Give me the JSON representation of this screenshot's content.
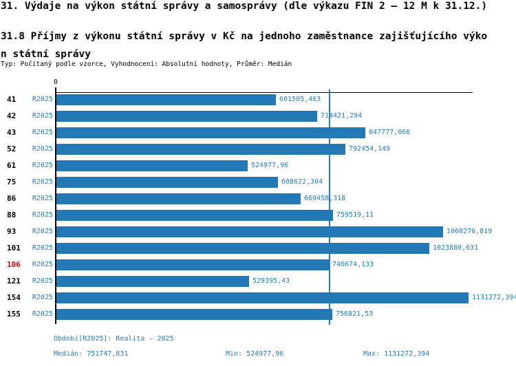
{
  "colors": {
    "bar_blue": "#2478B4",
    "text_blue": "#2878B8",
    "highlight_red": "#E00000",
    "axis_black": "#000000",
    "background": "#FFFFFF"
  },
  "header": {
    "title": "31. Výdaje na výkon státní správy a samosprávy (dle výkazu FIN 2 – 12 M k 31.12.)",
    "subtitle_line1": "31.8 Příjmy z výkonu státní správy v Kč na jednoho zaměstnance zajišťujícího výko",
    "subtitle_line2": "n státní správy",
    "meta": "Typ: Počítaný podle vzorce, Vyhodnocení: Absolutní hodnoty, Průměr: Medián"
  },
  "chart_data": {
    "type": "bar",
    "orientation": "horizontal",
    "title": "31.8 Příjmy z výkonu státní správy v Kč na jednoho zaměstnance zajišťujícího výkon státní správy",
    "axis_zero_label": "0",
    "series_label": "R2025",
    "categories": [
      "41",
      "42",
      "43",
      "52",
      "61",
      "75",
      "86",
      "88",
      "93",
      "101",
      "106",
      "121",
      "154",
      "155"
    ],
    "highlighted_category": "106",
    "values": [
      601505.463,
      714421.294,
      847777.066,
      792454.149,
      524977.96,
      608622.304,
      669458.318,
      759519.11,
      1060270.819,
      1023880.631,
      746674.133,
      529395.43,
      1131272.394,
      756821.53
    ],
    "value_labels": [
      "601505,463",
      "714421,294",
      "847777,066",
      "792454,149",
      "524977,96",
      "608622,304",
      "669458,318",
      "759519,11",
      "1060270,819",
      "1023880,631",
      "746674,133",
      "529395,43",
      "1131272,394",
      "756821,53"
    ],
    "median_value": 751747.831,
    "min_value": 524977.96,
    "max_value": 1131272.394,
    "xlim": [
      0,
      1140000
    ],
    "grid": false,
    "legend_position": "none"
  },
  "footer": {
    "period": "Období[R2025]: Realita – 2025",
    "median": "Medián: 751747,831",
    "min": "Min: 524977,96",
    "max": "Max: 1131272,394"
  }
}
